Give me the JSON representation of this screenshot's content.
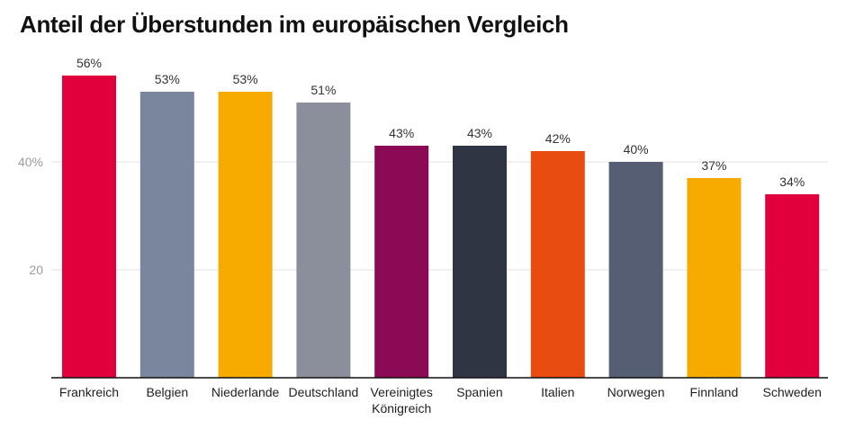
{
  "chart_data": {
    "type": "bar",
    "title": "Anteil der Überstunden im europäischen Vergleich",
    "xlabel": "",
    "ylabel": "",
    "ylim": [
      0,
      60
    ],
    "yticks": [
      {
        "value": 20,
        "label": "20"
      },
      {
        "value": 40,
        "label": "40%"
      }
    ],
    "categories": [
      [
        "Frankreich"
      ],
      [
        "Belgien"
      ],
      [
        "Niederlande"
      ],
      [
        "Deutschland"
      ],
      [
        "Vereinigtes",
        "Königreich"
      ],
      [
        "Spanien"
      ],
      [
        "Italien"
      ],
      [
        "Norwegen"
      ],
      [
        "Finnland"
      ],
      [
        "Schweden"
      ]
    ],
    "values": [
      56,
      53,
      53,
      51,
      43,
      43,
      42,
      40,
      37,
      34
    ],
    "value_labels": [
      "56%",
      "53%",
      "53%",
      "51%",
      "43%",
      "43%",
      "42%",
      "40%",
      "37%",
      "34%"
    ],
    "colors": [
      "#e1003c",
      "#7a859e",
      "#f7ab00",
      "#8b8f9b",
      "#8a0a55",
      "#2f3542",
      "#e84c10",
      "#555e72",
      "#f7ab00",
      "#e1003c"
    ],
    "grid": true,
    "legend": "none"
  }
}
